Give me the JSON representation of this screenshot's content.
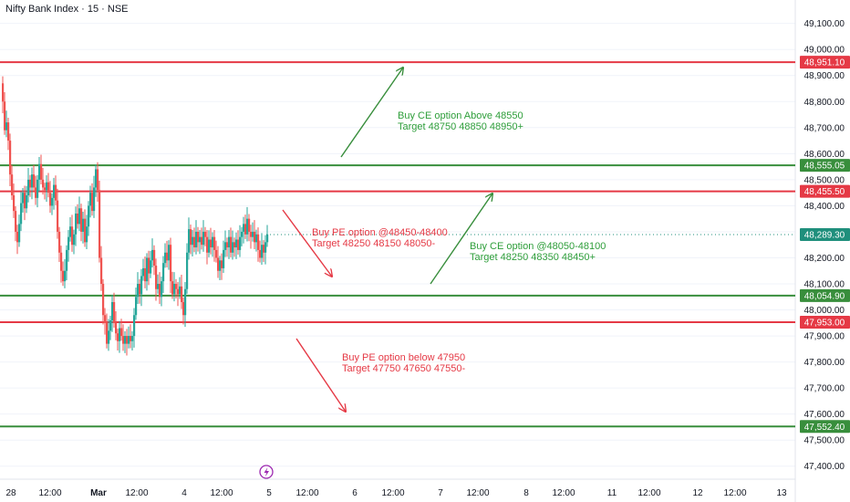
{
  "header": {
    "title": "Nifty Bank Index · 15 · NSE"
  },
  "colors": {
    "up": "#26a69a",
    "down": "#ef5350",
    "green_line": "#388e3c",
    "red_line": "#e53945",
    "green_text": "#2e9e3a",
    "red_text": "#e53945",
    "axis_text": "#131722",
    "grid": "#f0f3fa",
    "last_price": "#1f8f7c",
    "event_icon": "#9c27b0"
  },
  "event_icon": "lightning-icon",
  "chart_data": {
    "type": "candlestick",
    "ylim": [
      47350,
      49190
    ],
    "y_ticks": [
      47400,
      47500,
      47600,
      47700,
      47800,
      47900,
      48000,
      48100,
      48200,
      48300,
      48400,
      48500,
      48600,
      48700,
      48800,
      48900,
      49000,
      49100
    ],
    "y_tick_labels": [
      "47,400.00",
      "47,500.00",
      "47,600.00",
      "47,700.00",
      "47,800.00",
      "47,900.00",
      "48,000.00",
      "48,100.00",
      "48,200.00",
      "48,300.00",
      "48,400.00",
      "48,500.00",
      "48,600.00",
      "48,700.00",
      "48,800.00",
      "48,900.00",
      "49,000.00",
      "49,100.00"
    ],
    "x_labels": [
      "28",
      "12:00",
      "Mar",
      "12:00",
      "4",
      "12:00",
      "5",
      "12:00",
      "6",
      "12:00",
      "7",
      "12:00",
      "8",
      "12:00",
      "11",
      "12:00",
      "12",
      "12:00",
      "13"
    ],
    "levels": [
      {
        "value": 48951.1,
        "label": "48,951.10",
        "kind": "resistance"
      },
      {
        "value": 48555.05,
        "label": "48,555.05",
        "kind": "support"
      },
      {
        "value": 48455.5,
        "label": "48,455.50",
        "kind": "resistance"
      },
      {
        "value": 48054.9,
        "label": "48,054.90",
        "kind": "support"
      },
      {
        "value": 47953.0,
        "label": "47,953.00",
        "kind": "resistance"
      },
      {
        "value": 47552.4,
        "label": "47,552.40",
        "kind": "support"
      }
    ],
    "last_price": {
      "value": 48289.3,
      "label": "48,289.30"
    },
    "annotations": [
      {
        "kind": "buy-ce",
        "lines": [
          "Buy CE option Above 48550",
          "Target 48750 48850 48950+"
        ]
      },
      {
        "kind": "buy-pe",
        "lines": [
          "Buy PE option @48450-48400",
          "Target 48250 48150 48050-"
        ]
      },
      {
        "kind": "buy-ce",
        "lines": [
          "Buy CE option @48050-48100",
          "Target 48250 48350 48450+"
        ]
      },
      {
        "kind": "buy-pe",
        "lines": [
          "Buy PE option below 47950",
          "Target 47750 47650 47550-"
        ]
      }
    ]
  }
}
